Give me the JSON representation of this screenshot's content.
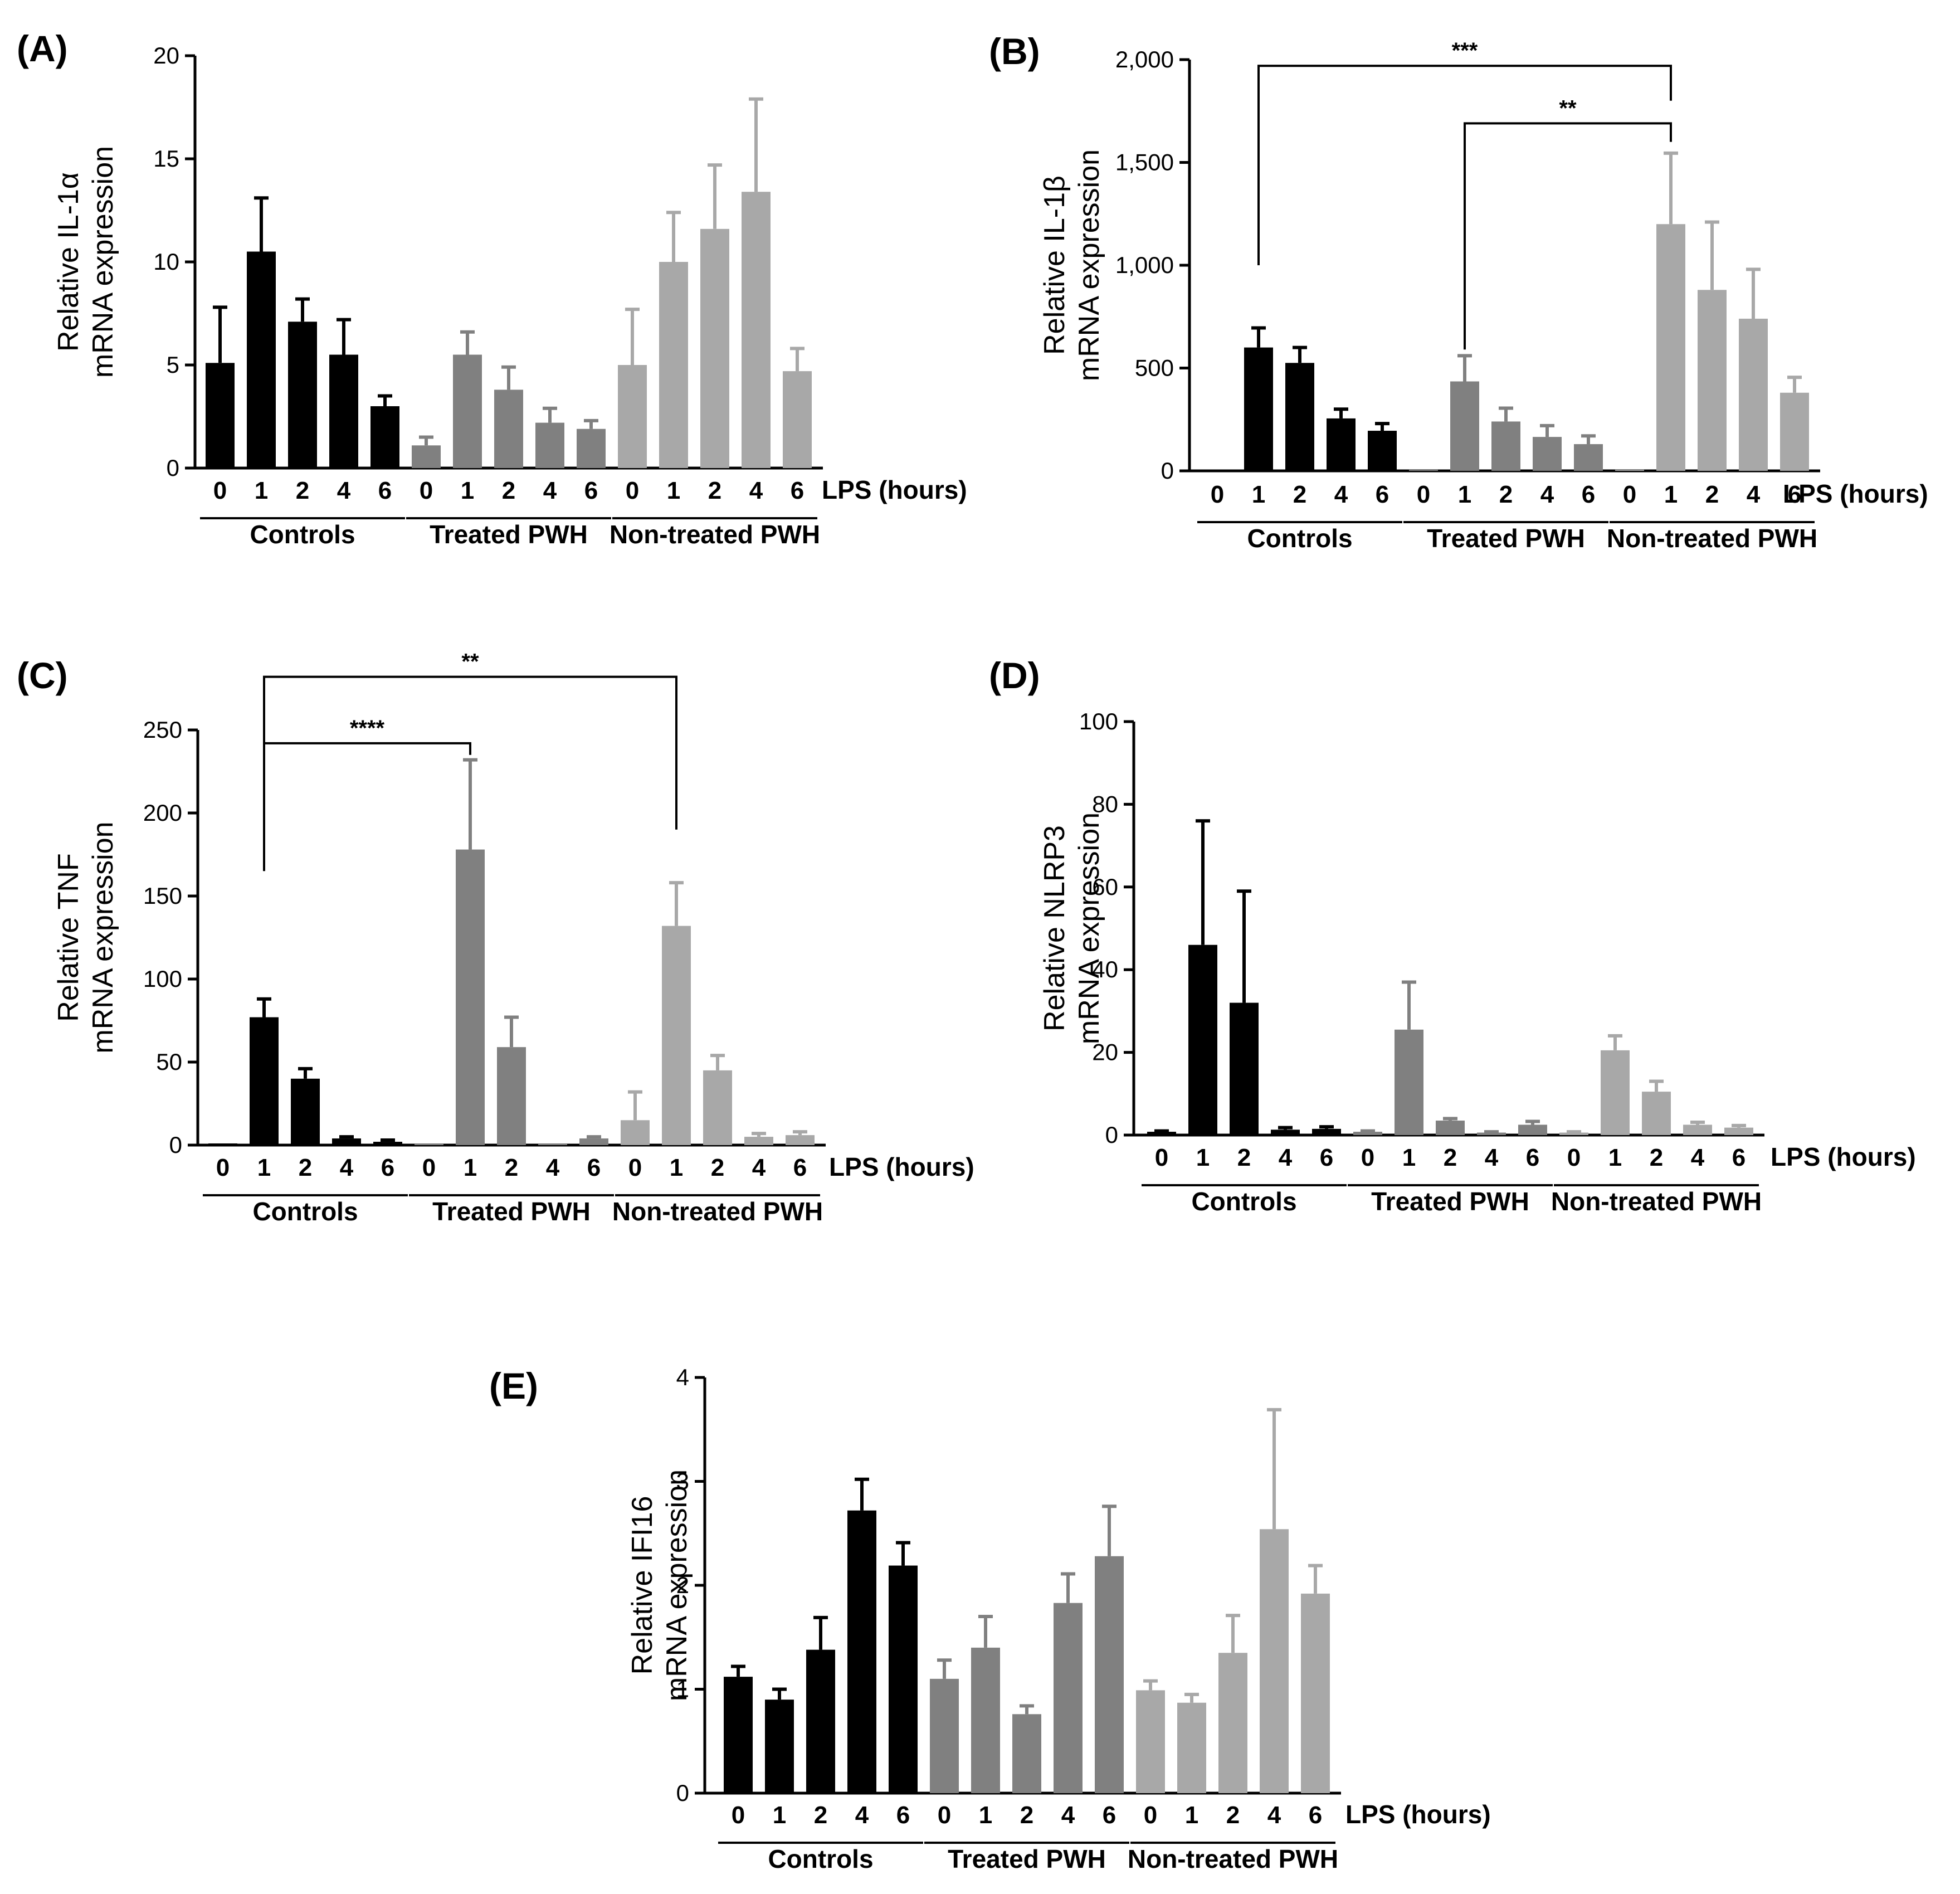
{
  "colors": {
    "controls": "#000000",
    "treated": "#808080",
    "nontreated": "#a8a8a8",
    "axis": "#000000"
  },
  "chart_data": [
    {
      "panel_label": "(A)",
      "type": "bar",
      "ylabel": [
        "Relative IL-1α",
        "mRNA expression"
      ],
      "ylim": [
        0,
        20
      ],
      "yticks": [
        "0",
        "5",
        "10",
        "15",
        "20"
      ],
      "ytick_values": [
        0,
        5,
        10,
        15,
        20
      ],
      "xlabel": "LPS (hours)",
      "groups": [
        {
          "name": "Controls",
          "categories": [
            "0",
            "1",
            "2",
            "4",
            "6"
          ],
          "values": [
            5.1,
            10.5,
            7.1,
            5.5,
            3.0
          ],
          "errors": [
            2.7,
            2.6,
            1.1,
            1.7,
            0.5
          ]
        },
        {
          "name": "Treated PWH",
          "categories": [
            "0",
            "1",
            "2",
            "4",
            "6"
          ],
          "values": [
            1.1,
            5.5,
            3.8,
            2.2,
            1.9
          ],
          "errors": [
            0.4,
            1.1,
            1.1,
            0.7,
            0.4
          ]
        },
        {
          "name": "Non-treated PWH",
          "categories": [
            "0",
            "1",
            "2",
            "4",
            "6"
          ],
          "values": [
            5.0,
            10.0,
            11.6,
            13.4,
            4.7
          ],
          "errors": [
            2.7,
            2.4,
            3.1,
            4.5,
            1.1
          ]
        }
      ],
      "significance": []
    },
    {
      "panel_label": "(B)",
      "type": "bar",
      "ylabel": [
        "Relative IL-1β",
        "mRNA expression"
      ],
      "ylim": [
        0,
        2000
      ],
      "yticks": [
        "0",
        "500",
        "1,000",
        "1,500",
        "2,000"
      ],
      "ytick_values": [
        0,
        500,
        1000,
        1500,
        2000
      ],
      "xlabel": "LPS (hours)",
      "groups": [
        {
          "name": "Controls",
          "categories": [
            "0",
            "1",
            "2",
            "4",
            "6"
          ],
          "values": [
            2,
            600,
            525,
            255,
            195
          ],
          "errors": [
            0,
            95,
            75,
            45,
            35
          ]
        },
        {
          "name": "Treated PWH",
          "categories": [
            "0",
            "1",
            "2",
            "4",
            "6"
          ],
          "values": [
            5,
            435,
            240,
            165,
            130
          ],
          "errors": [
            0,
            125,
            65,
            55,
            40
          ]
        },
        {
          "name": "Non-treated PWH",
          "categories": [
            "0",
            "1",
            "2",
            "4",
            "6"
          ],
          "values": [
            5,
            1200,
            880,
            740,
            380
          ],
          "errors": [
            0,
            345,
            330,
            240,
            75
          ]
        }
      ],
      "significance": [
        {
          "label": "***",
          "from_group": 0,
          "from_index": 1,
          "to_group": 2,
          "to_index": 1,
          "y": 1970,
          "drop_from": 1000,
          "drop_to": 1800
        },
        {
          "label": "**",
          "from_group": 1,
          "from_index": 1,
          "to_group": 2,
          "to_index": 1,
          "y": 1690,
          "drop_from": 590,
          "drop_to": 1600
        }
      ]
    },
    {
      "panel_label": "(C)",
      "type": "bar",
      "ylabel": [
        "Relative TNF",
        "mRNA expression"
      ],
      "ylim": [
        0,
        250
      ],
      "yticks": [
        "0",
        "50",
        "100",
        "150",
        "200",
        "250"
      ],
      "ytick_values": [
        0,
        50,
        100,
        150,
        200,
        250
      ],
      "xlabel": "LPS (hours)",
      "groups": [
        {
          "name": "Controls",
          "categories": [
            "0",
            "1",
            "2",
            "4",
            "6"
          ],
          "values": [
            1,
            77,
            40,
            4,
            2
          ],
          "errors": [
            0,
            11,
            6,
            1,
            1
          ]
        },
        {
          "name": "Treated PWH",
          "categories": [
            "0",
            "1",
            "2",
            "4",
            "6"
          ],
          "values": [
            1,
            178,
            59,
            1,
            4
          ],
          "errors": [
            0,
            54,
            18,
            0,
            1
          ]
        },
        {
          "name": "Non-treated PWH",
          "categories": [
            "0",
            "1",
            "2",
            "4",
            "6"
          ],
          "values": [
            15,
            132,
            45,
            5,
            6
          ],
          "errors": [
            17,
            26,
            9,
            2,
            2
          ]
        }
      ],
      "significance": [
        {
          "label": "**",
          "from_group": 0,
          "from_index": 1,
          "to_group": 2,
          "to_index": 1,
          "y": 282,
          "drop_from": 165,
          "drop_to": 190
        },
        {
          "label": "****",
          "from_group": 0,
          "from_index": 1,
          "to_group": 1,
          "to_index": 1,
          "y": 242,
          "drop_from": 200,
          "drop_to": 235
        }
      ]
    },
    {
      "panel_label": "(D)",
      "type": "bar",
      "ylabel": [
        "Relative NLRP3",
        "mRNA expression"
      ],
      "ylim": [
        0,
        100
      ],
      "yticks": [
        "0",
        "20",
        "40",
        "60",
        "80",
        "100"
      ],
      "ytick_values": [
        0,
        20,
        40,
        60,
        80,
        100
      ],
      "xlabel": "LPS (hours)",
      "groups": [
        {
          "name": "Controls",
          "categories": [
            "0",
            "1",
            "2",
            "4",
            "6"
          ],
          "values": [
            0.8,
            46,
            32,
            1.3,
            1.5
          ],
          "errors": [
            0.2,
            30,
            27,
            0.5,
            0.5
          ]
        },
        {
          "name": "Treated PWH",
          "categories": [
            "0",
            "1",
            "2",
            "4",
            "6"
          ],
          "values": [
            0.8,
            25.5,
            3.5,
            0.6,
            2.5
          ],
          "errors": [
            0.2,
            11.5,
            0.5,
            0.2,
            0.8
          ]
        },
        {
          "name": "Non-treated PWH",
          "categories": [
            "0",
            "1",
            "2",
            "4",
            "6"
          ],
          "values": [
            0.6,
            20.5,
            10.5,
            2.5,
            1.8
          ],
          "errors": [
            0.2,
            3.5,
            2.5,
            0.6,
            0.5
          ]
        }
      ],
      "significance": []
    },
    {
      "panel_label": "(E)",
      "type": "bar",
      "ylabel": [
        "Relative IFI16",
        "mRNA expression"
      ],
      "ylim": [
        0,
        4
      ],
      "yticks": [
        "0",
        "1",
        "2",
        "3",
        "4"
      ],
      "ytick_values": [
        0,
        1,
        2,
        3,
        4
      ],
      "xlabel": "LPS (hours)",
      "groups": [
        {
          "name": "Controls",
          "categories": [
            "0",
            "1",
            "2",
            "4",
            "6"
          ],
          "values": [
            1.12,
            0.9,
            1.38,
            2.72,
            2.19
          ],
          "errors": [
            0.1,
            0.1,
            0.31,
            0.3,
            0.22
          ]
        },
        {
          "name": "Treated PWH",
          "categories": [
            "0",
            "1",
            "2",
            "4",
            "6"
          ],
          "values": [
            1.1,
            1.4,
            0.76,
            1.83,
            2.28
          ],
          "errors": [
            0.18,
            0.3,
            0.08,
            0.28,
            0.48
          ]
        },
        {
          "name": "Non-treated PWH",
          "categories": [
            "0",
            "1",
            "2",
            "4",
            "6"
          ],
          "values": [
            0.99,
            0.87,
            1.35,
            2.54,
            1.92
          ],
          "errors": [
            0.09,
            0.08,
            0.36,
            1.15,
            0.27
          ]
        }
      ],
      "significance": []
    }
  ]
}
